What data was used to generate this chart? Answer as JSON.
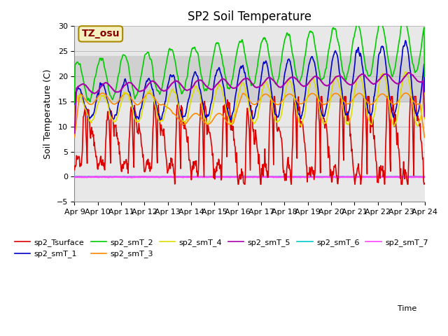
{
  "title": "SP2 Soil Temperature",
  "ylabel": "Soil Temperature (C)",
  "xlabel": "Time",
  "ylim": [
    -5,
    30
  ],
  "yticks": [
    -5,
    0,
    5,
    10,
    15,
    20,
    25,
    30
  ],
  "xtick_labels": [
    "Apr 9",
    "Apr 10",
    "Apr 11",
    "Apr 12",
    "Apr 13",
    "Apr 14",
    "Apr 15",
    "Apr 16",
    "Apr 17",
    "Apr 18",
    "Apr 19",
    "Apr 20",
    "Apr 21",
    "Apr 22",
    "Apr 23",
    "Apr 24"
  ],
  "shaded_region": [
    15.0,
    24.0
  ],
  "annotation_text": "TZ_osu",
  "annotation_color": "#880000",
  "annotation_bg": "#f5f0c0",
  "annotation_border": "#aa8800",
  "series_colors": {
    "sp2_Tsurface": "#dd0000",
    "sp2_smT_1": "#0000cc",
    "sp2_smT_2": "#00cc00",
    "sp2_smT_3": "#ff8800",
    "sp2_smT_4": "#dddd00",
    "sp2_smT_5": "#aa00aa",
    "sp2_smT_6": "#00cccc",
    "sp2_smT_7": "#ff44ff"
  },
  "plot_bg": "#e8e8e8",
  "shaded_color": "#d0d0d0",
  "grid_color": "#bbbbbb",
  "title_fontsize": 12,
  "label_fontsize": 9,
  "tick_fontsize": 8,
  "legend_fontsize": 8,
  "line_width": 1.2
}
